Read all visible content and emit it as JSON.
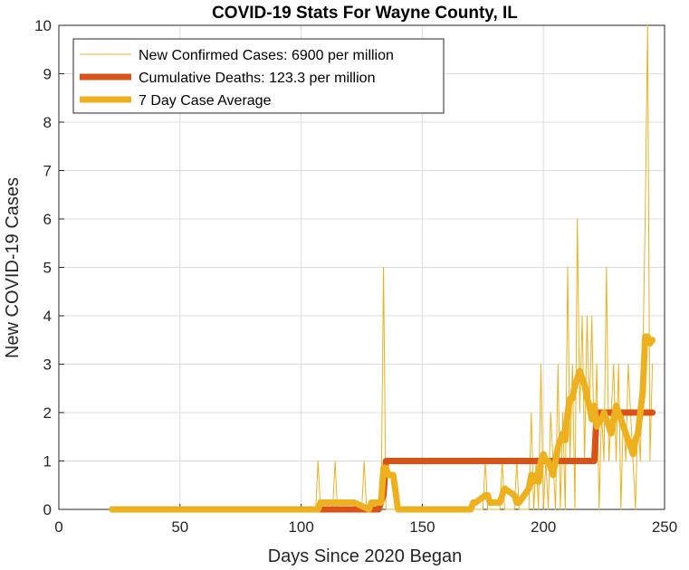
{
  "chart_data": {
    "type": "line",
    "title": "COVID-19 Stats For Wayne County, IL",
    "xlabel": "Days Since 2020 Began",
    "ylabel": "New COVID-19 Cases",
    "xlim": [
      0,
      250
    ],
    "ylim": [
      0,
      10
    ],
    "xticks": [
      0,
      50,
      100,
      150,
      200,
      250
    ],
    "yticks": [
      0,
      1,
      2,
      3,
      4,
      5,
      6,
      7,
      8,
      9,
      10
    ],
    "grid": true,
    "legend_position": "top-left",
    "series": [
      {
        "name": "New Confirmed Cases: 6900 per million",
        "color": "#EDB120",
        "line_width": "thin",
        "x": [
          22,
          106,
          107,
          108,
          113,
          114,
          115,
          125,
          126,
          127,
          133,
          134,
          135,
          140,
          150,
          160,
          170,
          175,
          176,
          177,
          182,
          183,
          184,
          188,
          189,
          190,
          194,
          195,
          196,
          197,
          198,
          199,
          200,
          201,
          202,
          203,
          204,
          205,
          206,
          207,
          208,
          209,
          210,
          211,
          212,
          213,
          214,
          215,
          216,
          217,
          218,
          219,
          220,
          221,
          222,
          223,
          224,
          225,
          226,
          227,
          228,
          229,
          230,
          231,
          232,
          233,
          234,
          235,
          236,
          237,
          238,
          239,
          240,
          241,
          242,
          243,
          244,
          245
        ],
        "y": [
          0,
          0,
          1,
          0,
          0,
          1,
          0,
          0,
          1,
          0,
          0,
          5,
          0,
          0,
          0,
          0,
          0,
          0,
          1,
          0,
          0,
          1,
          0,
          0,
          1,
          0,
          0,
          2,
          0,
          1,
          0,
          3,
          0,
          1,
          0,
          2,
          1,
          0,
          3,
          0,
          2,
          0,
          5,
          1,
          3,
          0,
          6,
          2,
          4,
          1,
          4,
          2,
          4,
          1,
          3,
          0,
          2,
          1,
          5,
          1,
          2,
          3,
          1,
          3,
          0,
          2,
          1,
          3,
          2,
          1,
          0,
          2,
          1,
          3,
          6,
          10,
          1,
          3
        ]
      },
      {
        "name": "Cumulative Deaths: 123.3 per million",
        "color": "#D95319",
        "line_width": "thick",
        "x": [
          22,
          108,
          124,
          132,
          134,
          135,
          218,
          221,
          222,
          245
        ],
        "y": [
          0,
          0,
          0,
          0,
          0.3,
          1,
          1,
          1,
          2,
          2
        ]
      },
      {
        "name": "7 Day Case Average",
        "color": "#EDB120",
        "line_width": "thick",
        "x": [
          22,
          107,
          108,
          114,
          115,
          121,
          122,
          128,
          129,
          132,
          133,
          134,
          135,
          136,
          137,
          138,
          140,
          141,
          142,
          170,
          171,
          172,
          176,
          177,
          178,
          182,
          183,
          184,
          188,
          189,
          190,
          194,
          195,
          196,
          197,
          198,
          199,
          200,
          201,
          202,
          203,
          204,
          205,
          206,
          207,
          208,
          209,
          210,
          211,
          212,
          213,
          214,
          215,
          216,
          217,
          218,
          219,
          220,
          221,
          222,
          223,
          224,
          225,
          226,
          227,
          228,
          229,
          230,
          231,
          232,
          233,
          234,
          235,
          236,
          237,
          238,
          239,
          240,
          241,
          242,
          243,
          244,
          245
        ],
        "y": [
          0,
          0,
          0.14,
          0.14,
          0.14,
          0.14,
          0.14,
          0,
          0.14,
          0.14,
          0.14,
          0.86,
          0.86,
          0.71,
          0.71,
          0.71,
          0,
          0,
          0,
          0,
          0.14,
          0.14,
          0.29,
          0.29,
          0.14,
          0.14,
          0.29,
          0.43,
          0.29,
          0.14,
          0.14,
          0.43,
          0.71,
          0.57,
          0.71,
          0.57,
          1.0,
          1.14,
          1.0,
          1.0,
          0.86,
          0.71,
          1.0,
          1.29,
          1.43,
          1.57,
          1.43,
          2.0,
          2.29,
          2.29,
          2.57,
          2.71,
          2.86,
          2.71,
          2.57,
          2.29,
          2.14,
          1.86,
          2.14,
          1.71,
          1.86,
          1.86,
          2.0,
          1.86,
          1.71,
          1.57,
          1.86,
          2.14,
          2.0,
          1.86,
          1.71,
          1.57,
          1.43,
          1.29,
          1.14,
          1.43,
          1.57,
          2.0,
          2.43,
          3.57,
          3.57,
          3.43,
          3.5
        ]
      }
    ]
  }
}
